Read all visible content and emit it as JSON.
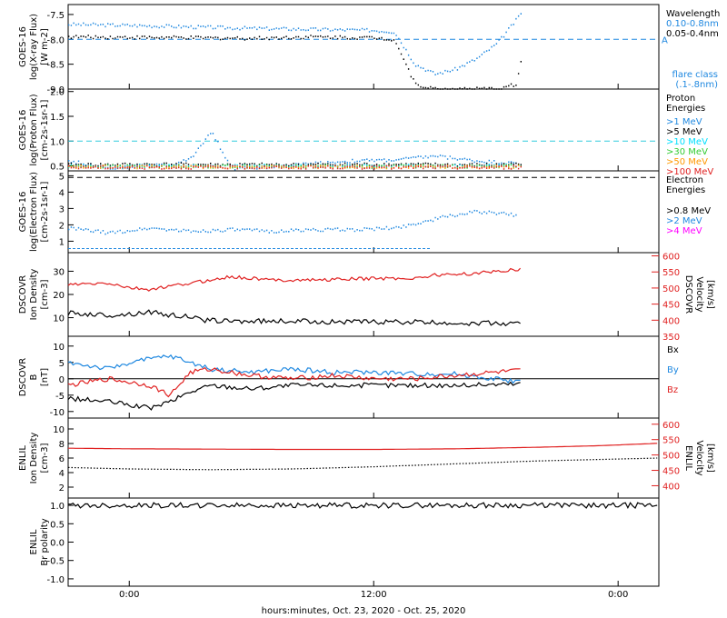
{
  "xlabel": "hours:minutes, Oct. 23, 2020 - Oct. 25, 2020",
  "x_ticks": [
    "0:00",
    "12:00",
    "0:00"
  ],
  "colors": {
    "black": "#000000",
    "blue": "#1f88e0",
    "cyan": "#00e0ff",
    "green": "#33cc33",
    "orange": "#ff9900",
    "red": "#e02020",
    "magenta": "#ff00ff",
    "dashed_cyan": "#33ccdd",
    "dashed_blue": "#1f88e0"
  },
  "chart_data": [
    {
      "type": "scatter",
      "ylabel": [
        "GOES-16",
        "log(X-ray Flux)",
        "[W m-2]"
      ],
      "ylim": [
        -9.0,
        -7.3
      ],
      "y_ticks": [
        -7.5,
        -8.0,
        -8.5,
        -9.0
      ],
      "y_tick_labels": [
        "-7.5",
        "-8.0",
        "-8.5",
        "-9.0"
      ],
      "legend_title": "Wavelength",
      "threshold": {
        "value": -8.0,
        "label": "A"
      },
      "flare_label": [
        "flare class",
        "(.1-.8nm)"
      ],
      "series": [
        {
          "name": "0.10-0.8nm",
          "color": "blue",
          "points": [
            [
              -3,
              -7.7
            ],
            [
              0,
              -7.72
            ],
            [
              3,
              -7.75
            ],
            [
              6,
              -7.78
            ],
            [
              9,
              -7.8
            ],
            [
              12,
              -7.82
            ],
            [
              13,
              -7.85
            ],
            [
              14,
              -8.5
            ],
            [
              15,
              -8.7
            ],
            [
              16,
              -8.6
            ],
            [
              17,
              -8.4
            ],
            [
              18,
              -8.1
            ],
            [
              19,
              -7.6
            ],
            [
              19.3,
              -7.4
            ]
          ]
        },
        {
          "name": "0.05-0.4nm",
          "color": "black",
          "points": [
            [
              -3,
              -7.95
            ],
            [
              0,
              -7.96
            ],
            [
              3,
              -7.97
            ],
            [
              6,
              -7.98
            ],
            [
              9,
              -7.95
            ],
            [
              12,
              -7.97
            ],
            [
              13,
              -8.0
            ],
            [
              14,
              -8.9
            ],
            [
              15,
              -9.0
            ],
            [
              16,
              -9.0
            ],
            [
              17,
              -9.0
            ],
            [
              18,
              -9.0
            ],
            [
              19,
              -8.9
            ],
            [
              19.3,
              -8.2
            ]
          ]
        }
      ]
    },
    {
      "type": "scatter",
      "ylabel": [
        "GOES-16",
        "log(Proton Flux)",
        "[cm-2s-1sr-1]"
      ],
      "ylim": [
        0.4,
        2.05
      ],
      "y_ticks": [
        2.0,
        1.5,
        1.0,
        0.5
      ],
      "y_tick_labels": [
        "2.0",
        "1.5",
        "1.0",
        "0.5"
      ],
      "legend_title": [
        "Proton",
        "Energies"
      ],
      "threshold": {
        "value": 1.0,
        "label": ""
      },
      "series": [
        {
          "name": ">1 MeV",
          "color": "blue",
          "points": [
            [
              -3,
              0.6
            ],
            [
              -1,
              0.45
            ],
            [
              1,
              0.52
            ],
            [
              2,
              0.5
            ],
            [
              3,
              0.65
            ],
            [
              4,
              1.2
            ],
            [
              5,
              0.45
            ],
            [
              7,
              0.48
            ],
            [
              9,
              0.55
            ],
            [
              11,
              0.6
            ],
            [
              13,
              0.62
            ],
            [
              15,
              0.7
            ],
            [
              17,
              0.6
            ],
            [
              19,
              0.55
            ]
          ]
        },
        {
          "name": ">5 MeV",
          "color": "black",
          "points": [
            [
              -3,
              0.52
            ],
            [
              2,
              0.53
            ],
            [
              7,
              0.52
            ],
            [
              12,
              0.53
            ],
            [
              17,
              0.52
            ],
            [
              19.3,
              0.53
            ]
          ]
        },
        {
          "name": ">10 MeV",
          "color": "cyan",
          "points": [
            [
              -3,
              0.5
            ],
            [
              19.3,
              0.5
            ]
          ]
        },
        {
          "name": ">30 MeV",
          "color": "green",
          "points": [
            [
              -3,
              0.49
            ],
            [
              19.3,
              0.49
            ]
          ]
        },
        {
          "name": ">50 MeV",
          "color": "orange",
          "points": [
            [
              -3,
              0.48
            ],
            [
              19.3,
              0.48
            ]
          ]
        },
        {
          "name": ">100 MeV",
          "color": "red",
          "points": [
            [
              -3,
              0.47
            ],
            [
              19.3,
              0.47
            ]
          ]
        }
      ]
    },
    {
      "type": "scatter",
      "ylabel": [
        "GOES-16",
        "log(Electron Flux)",
        "[cm-2s-1sr-1]"
      ],
      "ylim": [
        0.3,
        5.3
      ],
      "y_ticks": [
        5,
        4,
        3,
        2,
        1
      ],
      "y_tick_labels": [
        "5",
        "4",
        "3",
        "2",
        "1"
      ],
      "legend_title": [
        "Electron",
        "Energies"
      ],
      "threshold": {
        "value": 4.9,
        "label": ""
      },
      "series": [
        {
          "name": ">0.8 MeV",
          "color": "black",
          "points": []
        },
        {
          "name": ">2 MeV",
          "color": "blue",
          "points": [
            [
              -3,
              1.8
            ],
            [
              -1,
              1.5
            ],
            [
              1,
              1.8
            ],
            [
              3,
              1.6
            ],
            [
              5,
              1.7
            ],
            [
              7,
              1.6
            ],
            [
              9,
              1.7
            ],
            [
              11,
              1.7
            ],
            [
              13,
              1.8
            ],
            [
              14.5,
              2.2
            ],
            [
              15.5,
              2.5
            ],
            [
              17,
              2.8
            ],
            [
              19,
              2.6
            ]
          ]
        },
        {
          "name": ">4 MeV",
          "color": "magenta",
          "points": []
        }
      ],
      "baseline": {
        "value": 0.55,
        "from": -3,
        "to": 14.8
      }
    },
    {
      "type": "line",
      "ylabel": [
        "DSCOVR",
        "Ion Density",
        "[cm-3]"
      ],
      "ylim": [
        2,
        38
      ],
      "y_ticks": [
        30,
        20,
        10
      ],
      "y_tick_labels": [
        "30",
        "20",
        "10"
      ],
      "right_ylabel": [
        "DSCOVR",
        "Velocity",
        "[km/s]"
      ],
      "right_ylim": [
        350,
        610
      ],
      "right_ticks": [
        600,
        550,
        500,
        450,
        400,
        350
      ],
      "right_tick_labels": [
        "600",
        "550",
        "500",
        "450",
        "400",
        "350"
      ],
      "series": [
        {
          "name": "density",
          "color": "black",
          "axis": "left",
          "points": [
            [
              -3,
              12
            ],
            [
              -1,
              11
            ],
            [
              0,
              11.5
            ],
            [
              1,
              12.5
            ],
            [
              2,
              11
            ],
            [
              3,
              10.5
            ],
            [
              3.5,
              9
            ],
            [
              5,
              8.5
            ],
            [
              8,
              8.5
            ],
            [
              11,
              8.2
            ],
            [
              14,
              8.1
            ],
            [
              15,
              7.8
            ],
            [
              18,
              7.6
            ],
            [
              19.3,
              7.2
            ]
          ]
        },
        {
          "name": "velocity",
          "color": "red",
          "axis": "right",
          "points": [
            [
              -3,
              510
            ],
            [
              -1,
              515
            ],
            [
              0,
              500
            ],
            [
              1,
              495
            ],
            [
              2,
              505
            ],
            [
              3,
              515
            ],
            [
              5,
              535
            ],
            [
              7,
              525
            ],
            [
              9,
              525
            ],
            [
              12,
              530
            ],
            [
              14,
              530
            ],
            [
              15,
              540
            ],
            [
              17,
              545
            ],
            [
              19.3,
              560
            ]
          ]
        }
      ]
    },
    {
      "type": "line",
      "ylabel": [
        "DSCOVR",
        "B",
        "[nT]"
      ],
      "ylim": [
        -12,
        13
      ],
      "y_ticks": [
        10,
        5,
        0,
        -5,
        -10
      ],
      "y_tick_labels": [
        "10",
        "5",
        "0",
        "-5",
        "-10"
      ],
      "zero_line": true,
      "legend": [
        "Bx",
        "By",
        "Bz"
      ],
      "series": [
        {
          "name": "Bx",
          "color": "black",
          "points": [
            [
              -3,
              -6
            ],
            [
              -1,
              -7
            ],
            [
              0,
              -8
            ],
            [
              1,
              -9
            ],
            [
              2,
              -7
            ],
            [
              3,
              -4
            ],
            [
              4,
              -2
            ],
            [
              6,
              -3
            ],
            [
              8,
              -2
            ],
            [
              10,
              -2
            ],
            [
              12,
              -2
            ],
            [
              14,
              -2
            ],
            [
              16,
              -2
            ],
            [
              19.3,
              -1.5
            ]
          ]
        },
        {
          "name": "By",
          "color": "blue",
          "points": [
            [
              -3,
              5
            ],
            [
              -1,
              3
            ],
            [
              0,
              5
            ],
            [
              1,
              6
            ],
            [
              2,
              7
            ],
            [
              3,
              5
            ],
            [
              4,
              3
            ],
            [
              6,
              2
            ],
            [
              8,
              3
            ],
            [
              10,
              2
            ],
            [
              12,
              2
            ],
            [
              14,
              1.5
            ],
            [
              16,
              1.5
            ],
            [
              19.3,
              -1
            ]
          ]
        },
        {
          "name": "Bz",
          "color": "red",
          "points": [
            [
              -3,
              -2
            ],
            [
              -1,
              0
            ],
            [
              0,
              -1
            ],
            [
              1,
              -2
            ],
            [
              2,
              -5
            ],
            [
              3,
              2
            ],
            [
              4,
              3
            ],
            [
              6,
              1
            ],
            [
              8,
              0
            ],
            [
              10,
              1
            ],
            [
              12,
              0
            ],
            [
              14,
              0
            ],
            [
              16,
              1
            ],
            [
              18,
              2
            ],
            [
              19.3,
              2.5
            ]
          ]
        }
      ]
    },
    {
      "type": "line",
      "ylabel": [
        "ENLIL",
        "Ion Density",
        "[cm-3]"
      ],
      "ylim": [
        0.5,
        11.5
      ],
      "y_ticks": [
        10,
        8,
        6,
        4,
        2
      ],
      "y_tick_labels": [
        "10",
        "8",
        "6",
        "4",
        "2"
      ],
      "right_ylabel": [
        "ENLIL",
        "Velocity",
        "[km/s]"
      ],
      "right_ylim": [
        360,
        620
      ],
      "right_ticks": [
        600,
        550,
        500,
        450,
        400
      ],
      "right_tick_labels": [
        "600",
        "550",
        "500",
        "450",
        "400"
      ],
      "series": [
        {
          "name": "density",
          "color": "black",
          "axis": "left",
          "points": [
            [
              -3,
              4.7
            ],
            [
              0,
              4.5
            ],
            [
              4,
              4.4
            ],
            [
              8,
              4.5
            ],
            [
              12,
              4.8
            ],
            [
              16,
              5.2
            ],
            [
              20,
              5.6
            ],
            [
              23,
              5.8
            ],
            [
              26,
              6.0
            ]
          ]
        },
        {
          "name": "velocity",
          "color": "red",
          "axis": "right",
          "points": [
            [
              -3,
              522
            ],
            [
              0,
              520
            ],
            [
              4,
              519
            ],
            [
              8,
              518
            ],
            [
              12,
              518
            ],
            [
              16,
              520
            ],
            [
              20,
              525
            ],
            [
              23,
              530
            ],
            [
              26,
              538
            ]
          ]
        }
      ]
    },
    {
      "type": "line",
      "ylabel": [
        "ENLIL",
        "Br polarity"
      ],
      "ylim": [
        -1.2,
        1.2
      ],
      "y_ticks": [
        1.0,
        0.5,
        0.0,
        -0.5,
        -1.0
      ],
      "y_tick_labels": [
        "1.0",
        "0.5",
        "0.0",
        "-0.5",
        "-1.0"
      ],
      "series": [
        {
          "name": "polarity",
          "color": "black",
          "points": [
            [
              -3,
              1.0
            ],
            [
              26,
              1.0
            ]
          ]
        }
      ]
    }
  ]
}
